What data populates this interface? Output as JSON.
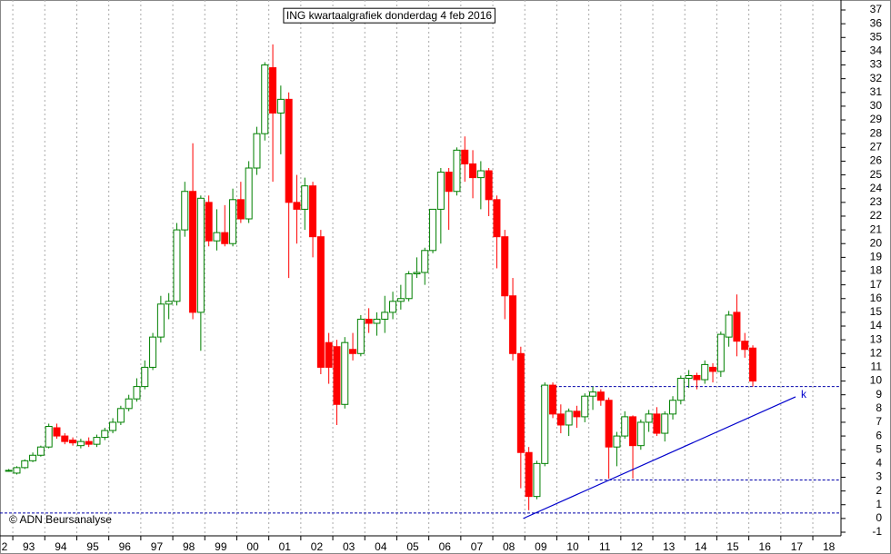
{
  "chart_data": {
    "type": "candlestick",
    "title": "ING kwartaalgrafiek donderdag 4 feb 2016",
    "watermark": "© ADN Beursanalyse",
    "up_color": "#008000",
    "down_color": "#ff0000",
    "grid": true,
    "xlim": [
      1992.6,
      2018.88
    ],
    "ylim": [
      -1,
      37
    ],
    "yticks": [
      -1,
      0,
      1,
      2,
      3,
      4,
      5,
      6,
      7,
      8,
      9,
      10,
      11,
      12,
      13,
      14,
      15,
      16,
      17,
      18,
      19,
      20,
      21,
      22,
      23,
      24,
      25,
      26,
      27,
      28,
      29,
      30,
      31,
      32,
      33,
      34,
      35,
      36,
      37
    ],
    "xticks": [
      {
        "value": 1992,
        "label": "2"
      },
      {
        "value": 1993,
        "label": "93"
      },
      {
        "value": 1994,
        "label": "94"
      },
      {
        "value": 1995,
        "label": "95"
      },
      {
        "value": 1996,
        "label": "96"
      },
      {
        "value": 1997,
        "label": "97"
      },
      {
        "value": 1998,
        "label": "98"
      },
      {
        "value": 1999,
        "label": "99"
      },
      {
        "value": 2000,
        "label": "00"
      },
      {
        "value": 2001,
        "label": "01"
      },
      {
        "value": 2002,
        "label": "02"
      },
      {
        "value": 2003,
        "label": "03"
      },
      {
        "value": 2004,
        "label": "04"
      },
      {
        "value": 2005,
        "label": "05"
      },
      {
        "value": 2006,
        "label": "06"
      },
      {
        "value": 2007,
        "label": "07"
      },
      {
        "value": 2008,
        "label": "08"
      },
      {
        "value": 2009,
        "label": "09"
      },
      {
        "value": 2010,
        "label": "10"
      },
      {
        "value": 2011,
        "label": "11"
      },
      {
        "value": 2012,
        "label": "12"
      },
      {
        "value": 2013,
        "label": "13"
      },
      {
        "value": 2014,
        "label": "14"
      },
      {
        "value": 2015,
        "label": "15"
      },
      {
        "value": 2016,
        "label": "16"
      },
      {
        "value": 2017,
        "label": "17"
      },
      {
        "value": 2018,
        "label": "18"
      }
    ],
    "x": [
      1992.875,
      1993.125,
      1993.375,
      1993.625,
      1993.875,
      1994.125,
      1994.375,
      1994.625,
      1994.875,
      1995.125,
      1995.375,
      1995.625,
      1995.875,
      1996.125,
      1996.375,
      1996.625,
      1996.875,
      1997.125,
      1997.375,
      1997.625,
      1997.875,
      1998.125,
      1998.375,
      1998.625,
      1998.875,
      1999.125,
      1999.375,
      1999.625,
      1999.875,
      2000.125,
      2000.375,
      2000.625,
      2000.875,
      2001.125,
      2001.375,
      2001.625,
      2001.875,
      2002.125,
      2002.375,
      2002.625,
      2002.875,
      2003.125,
      2003.375,
      2003.625,
      2003.875,
      2004.125,
      2004.375,
      2004.625,
      2004.875,
      2005.125,
      2005.375,
      2005.625,
      2005.875,
      2006.125,
      2006.375,
      2006.625,
      2006.875,
      2007.125,
      2007.375,
      2007.625,
      2007.875,
      2008.125,
      2008.375,
      2008.625,
      2008.875,
      2009.125,
      2009.375,
      2009.625,
      2009.875,
      2010.125,
      2010.375,
      2010.625,
      2010.875,
      2011.125,
      2011.375,
      2011.625,
      2011.875,
      2012.125,
      2012.375,
      2012.625,
      2012.875,
      2013.125,
      2013.375,
      2013.625,
      2013.875,
      2014.125,
      2014.375,
      2014.625,
      2014.875,
      2015.125,
      2015.375,
      2015.625,
      2015.875,
      2016.125
    ],
    "ohlc": [
      [
        3.5,
        3.6,
        3.4,
        3.5
      ],
      [
        3.3,
        3.8,
        3.2,
        3.7
      ],
      [
        3.7,
        4.3,
        3.6,
        4.2
      ],
      [
        4.2,
        4.8,
        4.1,
        4.6
      ],
      [
        4.6,
        5.3,
        4.5,
        5.2
      ],
      [
        5.2,
        6.9,
        5.1,
        6.7
      ],
      [
        6.6,
        6.9,
        5.8,
        6.0
      ],
      [
        6.0,
        6.2,
        5.4,
        5.6
      ],
      [
        5.7,
        5.9,
        5.3,
        5.5
      ],
      [
        5.3,
        5.8,
        5.1,
        5.6
      ],
      [
        5.6,
        5.9,
        5.2,
        5.4
      ],
      [
        5.4,
        6.1,
        5.2,
        5.9
      ],
      [
        5.9,
        6.6,
        5.7,
        6.4
      ],
      [
        6.4,
        7.3,
        6.2,
        7.0
      ],
      [
        7.0,
        8.2,
        6.8,
        8.0
      ],
      [
        8.0,
        9.0,
        7.8,
        8.7
      ],
      [
        8.7,
        10.2,
        8.5,
        9.6
      ],
      [
        9.6,
        11.5,
        9.4,
        11.0
      ],
      [
        11.0,
        13.5,
        10.8,
        13.2
      ],
      [
        13.2,
        16.2,
        12.8,
        15.6
      ],
      [
        15.6,
        16.4,
        14.5,
        15.8
      ],
      [
        15.8,
        21.5,
        15.5,
        21.0
      ],
      [
        21.0,
        24.5,
        20.5,
        23.8
      ],
      [
        23.8,
        27.3,
        14.5,
        15.0
      ],
      [
        15.0,
        23.5,
        12.2,
        23.3
      ],
      [
        23.0,
        23.5,
        19.8,
        20.2
      ],
      [
        20.2,
        22.5,
        19.5,
        20.8
      ],
      [
        20.8,
        22.8,
        19.8,
        20.0
      ],
      [
        20.0,
        24.0,
        19.8,
        23.2
      ],
      [
        23.2,
        24.5,
        21.5,
        21.8
      ],
      [
        21.8,
        26.0,
        21.5,
        25.5
      ],
      [
        25.5,
        28.5,
        25.0,
        28.0
      ],
      [
        28.0,
        33.2,
        27.5,
        33.0
      ],
      [
        32.8,
        34.5,
        24.5,
        29.5
      ],
      [
        29.5,
        31.5,
        26.5,
        30.5
      ],
      [
        30.5,
        31.0,
        17.5,
        23.0
      ],
      [
        23.0,
        25.0,
        20.0,
        22.5
      ],
      [
        22.5,
        24.8,
        21.0,
        24.2
      ],
      [
        24.2,
        24.5,
        19.0,
        20.5
      ],
      [
        20.5,
        21.0,
        10.5,
        11.0
      ],
      [
        12.8,
        13.5,
        9.8,
        11.0
      ],
      [
        12.5,
        13.0,
        6.8,
        8.3
      ],
      [
        8.3,
        13.2,
        8.0,
        12.8
      ],
      [
        12.3,
        13.5,
        11.5,
        12.0
      ],
      [
        12.0,
        14.8,
        11.8,
        14.5
      ],
      [
        14.5,
        15.3,
        13.5,
        14.2
      ],
      [
        14.2,
        15.0,
        13.3,
        14.5
      ],
      [
        14.5,
        16.2,
        13.5,
        15.0
      ],
      [
        15.0,
        16.5,
        14.5,
        15.8
      ],
      [
        15.8,
        17.0,
        15.2,
        16.0
      ],
      [
        16.0,
        18.0,
        15.8,
        17.8
      ],
      [
        17.8,
        19.0,
        17.5,
        17.9
      ],
      [
        17.9,
        19.7,
        17.0,
        19.5
      ],
      [
        19.5,
        22.5,
        19.3,
        22.5
      ],
      [
        22.5,
        25.5,
        20.0,
        25.2
      ],
      [
        25.2,
        25.5,
        21.0,
        23.8
      ],
      [
        23.8,
        27.0,
        23.5,
        26.8
      ],
      [
        26.8,
        27.8,
        24.5,
        25.8
      ],
      [
        25.8,
        26.8,
        23.3,
        24.8
      ],
      [
        24.8,
        26.0,
        22.5,
        25.3
      ],
      [
        25.3,
        25.5,
        22.0,
        23.2
      ],
      [
        23.2,
        23.5,
        18.2,
        20.5
      ],
      [
        20.5,
        21.0,
        14.5,
        16.2
      ],
      [
        16.2,
        17.5,
        11.5,
        12.0
      ],
      [
        12.0,
        12.5,
        2.2,
        4.8
      ],
      [
        4.8,
        5.2,
        0.6,
        1.6
      ],
      [
        1.6,
        4.2,
        1.4,
        4.0
      ],
      [
        4.0,
        9.9,
        3.8,
        9.7
      ],
      [
        9.7,
        9.9,
        7.3,
        7.6
      ],
      [
        7.6,
        8.3,
        6.2,
        6.8
      ],
      [
        6.8,
        8.0,
        6.0,
        7.8
      ],
      [
        7.8,
        8.2,
        6.6,
        7.4
      ],
      [
        7.4,
        9.1,
        7.0,
        8.9
      ],
      [
        8.9,
        9.6,
        7.9,
        9.2
      ],
      [
        9.2,
        9.4,
        8.2,
        8.6
      ],
      [
        8.6,
        8.8,
        2.9,
        5.2
      ],
      [
        5.2,
        6.3,
        3.8,
        6.0
      ],
      [
        6.0,
        7.8,
        5.8,
        7.4
      ],
      [
        7.4,
        7.5,
        2.9,
        5.3
      ],
      [
        5.3,
        7.2,
        5.0,
        7.0
      ],
      [
        7.0,
        7.9,
        6.3,
        7.6
      ],
      [
        7.6,
        8.1,
        6.0,
        6.2
      ],
      [
        6.2,
        7.8,
        5.6,
        7.6
      ],
      [
        7.6,
        8.9,
        7.2,
        8.6
      ],
      [
        8.6,
        10.4,
        8.3,
        10.2
      ],
      [
        10.2,
        10.8,
        9.5,
        10.4
      ],
      [
        10.4,
        10.6,
        9.4,
        10.1
      ],
      [
        10.1,
        11.5,
        9.8,
        11.2
      ],
      [
        11.0,
        11.3,
        9.9,
        10.7
      ],
      [
        10.7,
        13.6,
        10.3,
        13.4
      ],
      [
        13.2,
        15.1,
        12.5,
        14.8
      ],
      [
        15.0,
        16.3,
        11.8,
        12.9
      ],
      [
        12.9,
        13.5,
        11.7,
        12.3
      ],
      [
        12.4,
        12.6,
        9.6,
        10.0
      ]
    ],
    "levels": [
      {
        "y": 9.6,
        "x0": 2009.5
      },
      {
        "y": 2.8,
        "x0": 2011.2
      },
      {
        "y": 0.4,
        "x0": 1992.6
      }
    ],
    "level_color": "#0000aa",
    "trendline": {
      "x": [
        2008.95,
        2017.46
      ],
      "y": [
        0,
        8.85
      ],
      "label": "k",
      "color": "#0000cc"
    }
  }
}
